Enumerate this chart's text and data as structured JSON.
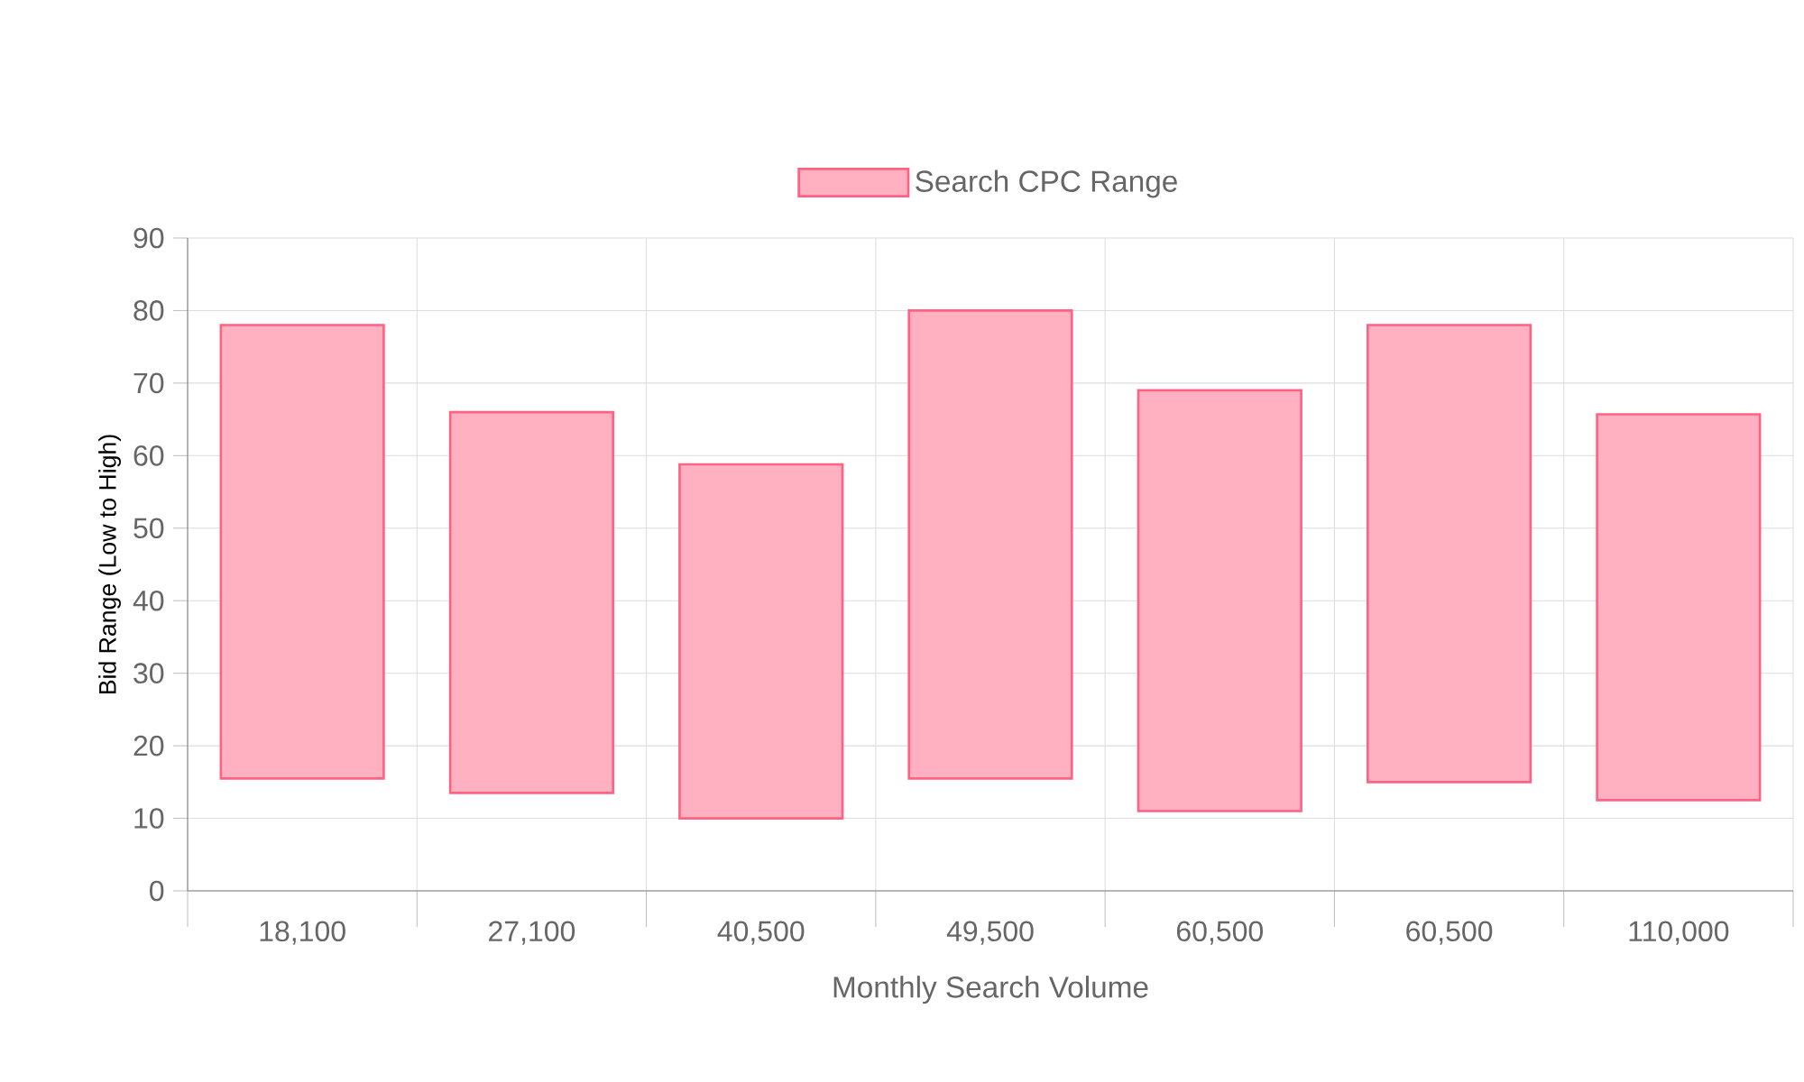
{
  "chart_data": {
    "type": "bar",
    "categories": [
      "18,100",
      "27,100",
      "40,500",
      "49,500",
      "60,500",
      "60,500",
      "110,000"
    ],
    "series": [
      {
        "name": "Search CPC Range",
        "color": "#ffb1c1",
        "values": [
          62.5,
          52.5,
          48.8,
          64.5,
          58,
          63,
          53.2
        ],
        "base": [
          15.5,
          13.5,
          10,
          15.5,
          11,
          15,
          12.5
        ]
      }
    ],
    "xlabel": "Monthly Search Volume",
    "ylabel": "Bid Range (Low to High)",
    "ylim": [
      0,
      90
    ],
    "yticks": [
      0,
      10,
      20,
      30,
      40,
      50,
      60,
      70,
      80,
      90
    ],
    "grid": true,
    "legend": "top"
  }
}
